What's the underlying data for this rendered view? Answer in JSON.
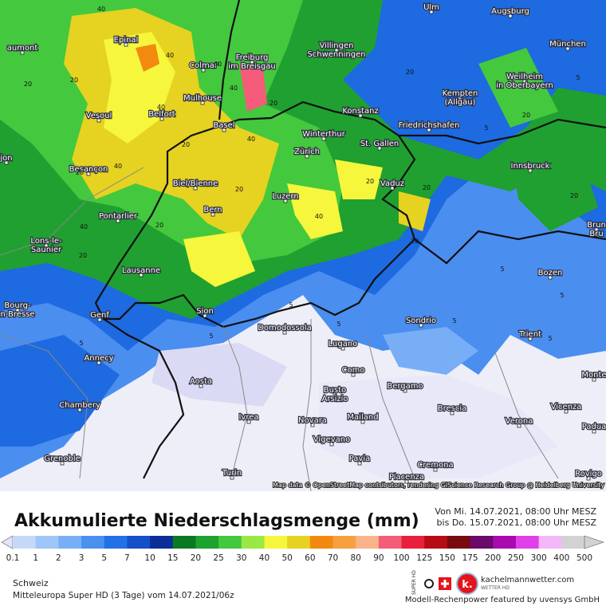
{
  "map": {
    "attribution": "Map data © OpenStreetMap contributors, rendering GIScience Research Group @ Heidelberg University",
    "cities": [
      {
        "lines": [
          "Epinal"
        ]
      },
      {
        "lines": [
          "aumont"
        ]
      },
      {
        "lines": [
          "Colmar"
        ]
      },
      {
        "lines": [
          "Freiburg",
          "im Breisgau"
        ]
      },
      {
        "lines": [
          "Villingen",
          "Schwenningen"
        ]
      },
      {
        "lines": [
          "Ulm"
        ]
      },
      {
        "lines": [
          "Augsburg"
        ]
      },
      {
        "lines": [
          "München"
        ]
      },
      {
        "lines": [
          "Weilheim",
          "in Oberbayern"
        ]
      },
      {
        "lines": [
          "Kempten",
          "(Allgäu)"
        ]
      },
      {
        "lines": [
          "Mulhouse"
        ]
      },
      {
        "lines": [
          "Belfort"
        ]
      },
      {
        "lines": [
          "Vesoul"
        ]
      },
      {
        "lines": [
          "Basel"
        ]
      },
      {
        "lines": [
          "Konstanz"
        ]
      },
      {
        "lines": [
          "Friedrichshafen"
        ]
      },
      {
        "lines": [
          "Winterthur"
        ]
      },
      {
        "lines": [
          "St. Gallen"
        ]
      },
      {
        "lines": [
          "Zürich"
        ]
      },
      {
        "lines": [
          "Besançon"
        ]
      },
      {
        "lines": [
          "jon"
        ]
      },
      {
        "lines": [
          "Biel/Bienne"
        ]
      },
      {
        "lines": [
          "Innsbruck"
        ]
      },
      {
        "lines": [
          "Vaduz"
        ]
      },
      {
        "lines": [
          "Luzern"
        ]
      },
      {
        "lines": [
          "Bern"
        ]
      },
      {
        "lines": [
          "Pontarlier"
        ]
      },
      {
        "lines": [
          "Lons-le-",
          "Saunier"
        ]
      },
      {
        "lines": [
          "Brun",
          "Bru"
        ]
      },
      {
        "lines": [
          "Lausanne"
        ]
      },
      {
        "lines": [
          "Bozen"
        ]
      },
      {
        "lines": [
          "Bourg-",
          "n-Bresse"
        ]
      },
      {
        "lines": [
          "Sion"
        ]
      },
      {
        "lines": [
          "Genf"
        ]
      },
      {
        "lines": [
          "Sondrio"
        ]
      },
      {
        "lines": [
          "Domodossola"
        ]
      },
      {
        "lines": [
          "Trient"
        ]
      },
      {
        "lines": [
          "Lugano"
        ]
      },
      {
        "lines": [
          "Annecy"
        ]
      },
      {
        "lines": [
          "Como"
        ]
      },
      {
        "lines": [
          "Monte"
        ]
      },
      {
        "lines": [
          "Aosta"
        ]
      },
      {
        "lines": [
          "Busto",
          "Arsizio"
        ]
      },
      {
        "lines": [
          "Bergamo"
        ]
      },
      {
        "lines": [
          "Chambery"
        ]
      },
      {
        "lines": [
          "Brescia"
        ]
      },
      {
        "lines": [
          "Vicenza"
        ]
      },
      {
        "lines": [
          "Ivrea"
        ]
      },
      {
        "lines": [
          "Novara"
        ]
      },
      {
        "lines": [
          "Mailand"
        ]
      },
      {
        "lines": [
          "Verona"
        ]
      },
      {
        "lines": [
          "Padua"
        ]
      },
      {
        "lines": [
          "Vigevano"
        ]
      },
      {
        "lines": [
          "Grenoble"
        ]
      },
      {
        "lines": [
          "Pavia"
        ]
      },
      {
        "lines": [
          "Cremona"
        ]
      },
      {
        "lines": [
          "Turin"
        ]
      },
      {
        "lines": [
          "Piacenza"
        ]
      },
      {
        "lines": [
          "Rovigo"
        ]
      }
    ],
    "contour_labels": [
      "40",
      "40",
      "40",
      "40",
      "40",
      "40",
      "40",
      "40",
      "40",
      "20",
      "20",
      "20",
      "20",
      "20",
      "20",
      "20",
      "20",
      "20",
      "20",
      "20",
      "20",
      "20",
      "20",
      "5",
      "5",
      "5",
      "5",
      "5",
      "5",
      "5",
      "5",
      "5",
      "5"
    ]
  },
  "legend": {
    "title": "Akkumulierte Niederschlagsmenge (mm)",
    "period": [
      "Von Mi. 14.07.2021, 08:00 Uhr MESZ",
      "bis Do. 15.07.2021, 08:00 Uhr MESZ"
    ],
    "ticks": [
      {
        "label": "0.1",
        "color": "#e4e4f6"
      },
      {
        "label": "1",
        "color": "#c6d8f8"
      },
      {
        "label": "2",
        "color": "#9ec6f8"
      },
      {
        "label": "3",
        "color": "#78aef6"
      },
      {
        "label": "5",
        "color": "#4a90ee"
      },
      {
        "label": "7",
        "color": "#2270e6"
      },
      {
        "label": "10",
        "color": "#1450c8"
      },
      {
        "label": "15",
        "color": "#0c2e96"
      },
      {
        "label": "20",
        "color": "#0a7a22"
      },
      {
        "label": "25",
        "color": "#1ea230"
      },
      {
        "label": "30",
        "color": "#44c83e"
      },
      {
        "label": "40",
        "color": "#9ae844"
      },
      {
        "label": "50",
        "color": "#f6f63c"
      },
      {
        "label": "60",
        "color": "#e6d220"
      },
      {
        "label": "70",
        "color": "#f28a10"
      },
      {
        "label": "80",
        "color": "#f6a040"
      },
      {
        "label": "90",
        "color": "#f8b488"
      },
      {
        "label": "100",
        "color": "#f45c7a"
      },
      {
        "label": "125",
        "color": "#e8203c"
      },
      {
        "label": "150",
        "color": "#b80c14"
      },
      {
        "label": "175",
        "color": "#780a10"
      },
      {
        "label": "200",
        "color": "#6a0a6a"
      },
      {
        "label": "250",
        "color": "#a80ab0"
      },
      {
        "label": "300",
        "color": "#e040e8"
      },
      {
        "label": "400",
        "color": "#f4b8f8"
      },
      {
        "label": "500",
        "color": "#d2d2d2"
      }
    ]
  },
  "footer": {
    "region": "Schweiz",
    "model": "Mitteleuropa Super HD (3 Tage) vom 14.07.2021/06z",
    "badge": "SUPER HD",
    "logo_mark": "k.",
    "brand": "kachelmannwetter.com",
    "brand_sub": "WETTER HD",
    "credit": "Modell-Rechenpower featured by uvensys GmbH"
  }
}
